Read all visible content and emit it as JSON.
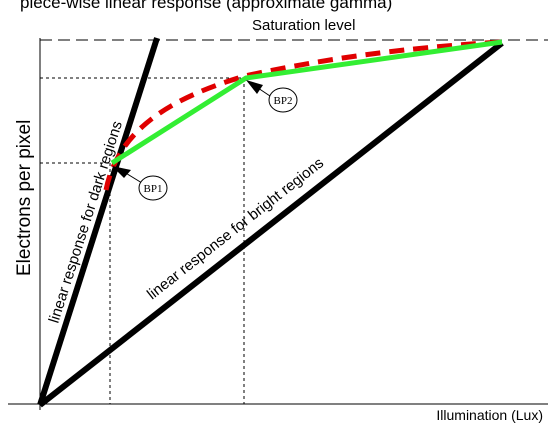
{
  "header": {
    "partial_title": "piece-wise linear response (approximate gamma)"
  },
  "labels": {
    "saturation": "Saturation level",
    "y_axis": "Electrons per pixel",
    "x_axis": "Illumination (Lux)",
    "dark_line": "linear response for dark regions",
    "bright_line": "linear response for bright regions",
    "bp1": "BP1",
    "bp2": "BP2"
  },
  "colors": {
    "axis": "#000000",
    "dark_response": "#000000",
    "bright_response": "#000000",
    "piecewise_response": "#33ee33",
    "gamma_curve": "#e00000",
    "guide": "#000000"
  }
}
